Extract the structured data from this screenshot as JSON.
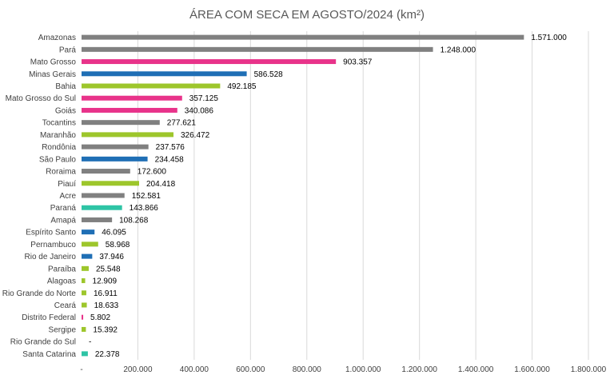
{
  "chart_data": {
    "type": "bar",
    "orientation": "horizontal",
    "title": "ÁREA COM SECA EM AGOSTO/2024 (km²)",
    "xlabel": "",
    "ylabel": "",
    "xlim": [
      0,
      1800000
    ],
    "grid": true,
    "legend": "none",
    "x_ticks": [
      "-",
      "200.000",
      "400.000",
      "600.000",
      "800.000",
      "1.000.000",
      "1.200.000",
      "1.400.000",
      "1.600.000",
      "1.800.000"
    ],
    "colors": {
      "gray": "#808080",
      "pink": "#e8338a",
      "blue": "#1f6fb5",
      "green": "#9dc62b",
      "teal": "#2ec4a5"
    },
    "categories": [
      "Amazonas",
      "Pará",
      "Mato Grosso",
      "Minas Gerais",
      "Bahia",
      "Mato Grosso do Sul",
      "Goiás",
      "Tocantins",
      "Maranhão",
      "Rondônia",
      "São Paulo",
      "Roraima",
      "Piauí",
      "Acre",
      "Paraná",
      "Amapá",
      "Espírito Santo",
      "Pernambuco",
      "Rio de Janeiro",
      "Paraíba",
      "Alagoas",
      "Rio Grande do Norte",
      "Ceará",
      "Distrito Federal",
      "Sergipe",
      "Rio Grande do Sul",
      "Santa Catarina"
    ],
    "values": [
      1571000,
      1248000,
      903357,
      586528,
      492185,
      357125,
      340086,
      277621,
      326472,
      237576,
      234458,
      172600,
      204418,
      152581,
      143866,
      108268,
      46095,
      58968,
      37946,
      25548,
      12909,
      16911,
      18633,
      5802,
      15392,
      0,
      22378
    ],
    "labels": [
      "1.571.000",
      "1.248.000",
      "903.357",
      "586.528",
      "492.185",
      "357.125",
      "340.086",
      "277.621",
      "326.472",
      "237.576",
      "234.458",
      "172.600",
      "204.418",
      "152.581",
      "143.866",
      "108.268",
      "46.095",
      "58.968",
      "37.946",
      "25.548",
      "12.909",
      "16.911",
      "18.633",
      "5.802",
      "15.392",
      "-",
      "22.378"
    ],
    "bar_colors": [
      "gray",
      "gray",
      "pink",
      "blue",
      "green",
      "pink",
      "pink",
      "gray",
      "green",
      "gray",
      "blue",
      "gray",
      "green",
      "gray",
      "teal",
      "gray",
      "blue",
      "green",
      "blue",
      "green",
      "green",
      "green",
      "green",
      "pink",
      "green",
      "green",
      "teal"
    ]
  }
}
